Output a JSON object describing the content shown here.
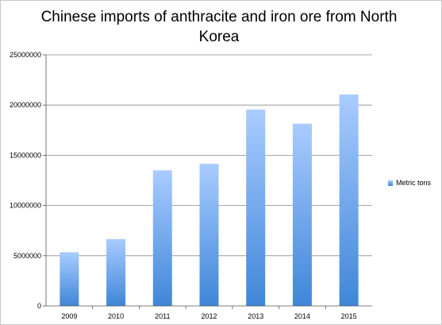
{
  "chart_data": {
    "type": "bar",
    "title": "Chinese imports of anthracite and iron ore from North Korea",
    "categories": [
      "2009",
      "2010",
      "2011",
      "2012",
      "2013",
      "2014",
      "2015"
    ],
    "series": [
      {
        "name": "Metric tons",
        "values": [
          5350000,
          6650000,
          13500000,
          14150000,
          19550000,
          18150000,
          21050000
        ]
      }
    ],
    "ylim": [
      0,
      25000000
    ],
    "yticks": [
      "0",
      "5000000",
      "10000000",
      "15000000",
      "20000000",
      "25000000"
    ],
    "grid": true,
    "legend_position": "right",
    "colors": {
      "bar_top": "#a9ccff",
      "bar_bottom": "#3f86d8",
      "grid": "#8a8a8a"
    }
  }
}
